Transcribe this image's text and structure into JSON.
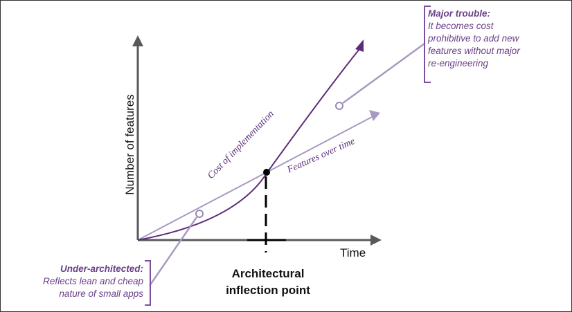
{
  "axes": {
    "y_label": "Number of features",
    "x_label": "Time"
  },
  "curves": {
    "cost_label": "Cost of implementation",
    "features_label": "Features over time"
  },
  "inflection": {
    "line1": "Architectural",
    "line2": "inflection point"
  },
  "notes": {
    "major": {
      "heading": "Major trouble:",
      "lines": [
        "It becomes cost",
        "prohibitive to add new",
        "features without major",
        "re-engineering"
      ]
    },
    "under": {
      "heading": "Under-architected:",
      "lines": [
        "Reflects lean and cheap",
        "nature of small apps"
      ]
    }
  },
  "colors": {
    "purple": "#5a2d78",
    "lavender": "#a899c2",
    "axis_gray": "#595959",
    "bracket": "#7b4f9d"
  }
}
